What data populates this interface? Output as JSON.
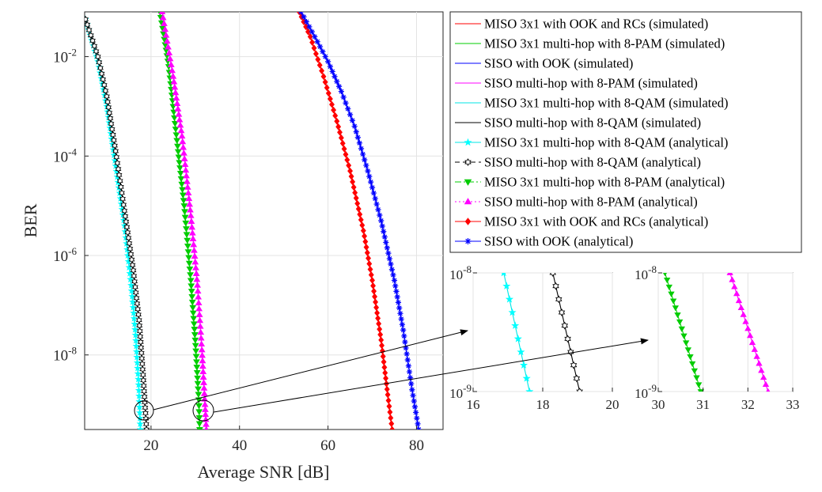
{
  "chart_data": [
    {
      "type": "line",
      "id": "main",
      "xlabel": "Average SNR [dB]",
      "ylabel": "BER",
      "xlim": [
        5,
        86
      ],
      "ylim_log10": [
        -9.5,
        -1.1
      ],
      "yscale": "log",
      "grid": true,
      "x_tick_labels": [
        "20",
        "40",
        "60",
        "80"
      ],
      "x_tick_values": [
        20,
        40,
        60,
        80
      ],
      "y_tick_values": [
        -2,
        -4,
        -6,
        -8
      ],
      "y_tick_base": "10",
      "y_tick_exponents": [
        "-2",
        "-4",
        "-6",
        "-8"
      ],
      "legend_position": "outside-right",
      "series": [
        {
          "name": "MISO 3x1 with OOK and RCs (simulated)",
          "color": "#ff0000",
          "style": "solid",
          "marker": "none",
          "x": [
            53.5,
            56,
            59,
            62,
            65,
            68,
            70,
            72,
            73.5,
            74.5
          ],
          "y_log10": [
            -1.1,
            -1.6,
            -2.4,
            -3.3,
            -4.3,
            -5.5,
            -6.5,
            -7.7,
            -8.8,
            -9.5
          ]
        },
        {
          "name": "MISO 3x1 multi-hop with 8-PAM (simulated)",
          "color": "#00cc00",
          "style": "solid",
          "marker": "none",
          "x": [
            22,
            24,
            26,
            27.5,
            29,
            30,
            30.8,
            31
          ],
          "y_log10": [
            -1.1,
            -2.2,
            -3.8,
            -5.0,
            -6.5,
            -7.7,
            -8.9,
            -9.5
          ]
        },
        {
          "name": "SISO with OOK (simulated)",
          "color": "#0000ff",
          "style": "solid",
          "marker": "none",
          "x": [
            53.9,
            57,
            60,
            63,
            66,
            69,
            72,
            75,
            77,
            79,
            80.5
          ],
          "y_log10": [
            -1.1,
            -1.6,
            -2.1,
            -2.7,
            -3.4,
            -4.3,
            -5.3,
            -6.5,
            -7.5,
            -8.7,
            -9.5
          ]
        },
        {
          "name": "SISO multi-hop with 8-PAM (simulated)",
          "color": "#ff00ff",
          "style": "solid",
          "marker": "none",
          "x": [
            22.5,
            25,
            27,
            29,
            30.5,
            31.5,
            32.2,
            32.5
          ],
          "y_log10": [
            -1.1,
            -2.4,
            -3.6,
            -5.2,
            -6.6,
            -7.9,
            -9.0,
            -9.5
          ]
        },
        {
          "name": "MISO 3x1 multi-hop with 8-QAM (simulated)",
          "color": "#00ffff",
          "style": "solid",
          "marker": "none",
          "x": [
            5.2,
            8,
            10,
            12,
            14,
            15.5,
            16.5,
            17.2,
            17.6
          ],
          "y_log10": [
            -1.25,
            -2.1,
            -3.0,
            -4.2,
            -5.4,
            -6.6,
            -7.6,
            -8.6,
            -9.5
          ]
        },
        {
          "name": "SISO multi-hop with 8-QAM (simulated)",
          "color": "#000000",
          "style": "solid",
          "marker": "none",
          "x": [
            5.2,
            8,
            10,
            12,
            14,
            16,
            17.3,
            18.2,
            19
          ],
          "y_log10": [
            -1.25,
            -2.0,
            -2.8,
            -3.9,
            -5.1,
            -6.3,
            -7.3,
            -8.4,
            -9.5
          ]
        },
        {
          "name": "MISO 3x1 multi-hop with 8-QAM (analytical)",
          "color": "#00ffff",
          "style": "solid",
          "marker": "star",
          "x": [
            5.2,
            8,
            10,
            12,
            14,
            15.5,
            16.5,
            17.2,
            17.6
          ],
          "y_log10": [
            -1.25,
            -2.1,
            -3.0,
            -4.2,
            -5.4,
            -6.6,
            -7.6,
            -8.6,
            -9.5
          ]
        },
        {
          "name": "SISO multi-hop with 8-QAM (analytical)",
          "color": "#000000",
          "style": "dashed",
          "marker": "hexagram",
          "x": [
            5.2,
            8,
            10,
            12,
            14,
            16,
            17.3,
            18.2,
            19
          ],
          "y_log10": [
            -1.25,
            -2.0,
            -2.8,
            -3.9,
            -5.1,
            -6.3,
            -7.3,
            -8.4,
            -9.5
          ]
        },
        {
          "name": "MISO 3x1 multi-hop with 8-PAM (analytical)",
          "color": "#00cc00",
          "style": "dashdot",
          "marker": "triangle-down",
          "x": [
            22,
            24,
            26,
            27.5,
            29,
            30,
            30.8,
            31
          ],
          "y_log10": [
            -1.1,
            -2.2,
            -3.8,
            -5.0,
            -6.5,
            -7.7,
            -8.9,
            -9.5
          ]
        },
        {
          "name": "SISO multi-hop with 8-PAM (analytical)",
          "color": "#ff00ff",
          "style": "dotted",
          "marker": "triangle-up",
          "x": [
            22.5,
            25,
            27,
            29,
            30.5,
            31.5,
            32.2,
            32.5
          ],
          "y_log10": [
            -1.1,
            -2.4,
            -3.6,
            -5.2,
            -6.6,
            -7.9,
            -9.0,
            -9.5
          ]
        },
        {
          "name": "MISO 3x1 with OOK and RCs (analytical)",
          "color": "#ff0000",
          "style": "solid",
          "marker": "diamond",
          "x": [
            53.5,
            56,
            59,
            62,
            65,
            68,
            70,
            72,
            73.5,
            74.5
          ],
          "y_log10": [
            -1.1,
            -1.6,
            -2.4,
            -3.3,
            -4.3,
            -5.5,
            -6.5,
            -7.7,
            -8.8,
            -9.5
          ]
        },
        {
          "name": "SISO with OOK (analytical)",
          "color": "#0000ff",
          "style": "solid",
          "marker": "asterisk",
          "x": [
            53.9,
            57,
            60,
            63,
            66,
            69,
            72,
            75,
            77,
            79,
            80.5
          ],
          "y_log10": [
            -1.1,
            -1.6,
            -2.1,
            -2.7,
            -3.4,
            -4.3,
            -5.3,
            -6.5,
            -7.5,
            -8.7,
            -9.5
          ]
        }
      ]
    },
    {
      "type": "line",
      "id": "inset-qam",
      "xlim": [
        16,
        20
      ],
      "yscale": "log",
      "ylim_log10": [
        -9,
        -8
      ],
      "grid": true,
      "x_tick_labels": [
        "16",
        "18",
        "20"
      ],
      "x_tick_values": [
        16,
        18,
        20
      ],
      "y_tick_base": "10",
      "y_tick_exponents": [
        "-8",
        "-9"
      ],
      "y_tick_values": [
        -8,
        -9
      ],
      "series": [
        {
          "name": "MISO 3x1 multi-hop with 8-QAM (analytical)",
          "color": "#00ffff",
          "marker": "star",
          "x": [
            16.88,
            17.62
          ],
          "y_log10": [
            -8.0,
            -9.0
          ]
        },
        {
          "name": "SISO multi-hop with 8-QAM (analytical)",
          "color": "#000000",
          "marker": "hexagram",
          "x": [
            18.29,
            19.06
          ],
          "y_log10": [
            -8.0,
            -9.0
          ]
        }
      ]
    },
    {
      "type": "line",
      "id": "inset-pam",
      "xlim": [
        30,
        33
      ],
      "yscale": "log",
      "ylim_log10": [
        -9,
        -8
      ],
      "grid": true,
      "x_tick_labels": [
        "30",
        "31",
        "32",
        "33"
      ],
      "x_tick_values": [
        30,
        31,
        32,
        33
      ],
      "y_tick_base": "10",
      "y_tick_exponents": [
        "-8",
        "-9"
      ],
      "y_tick_values": [
        -8,
        -9
      ],
      "series": [
        {
          "name": "MISO 3x1 multi-hop with 8-PAM (analytical)",
          "color": "#00cc00",
          "marker": "triangle-down",
          "x": [
            30.15,
            30.95
          ],
          "y_log10": [
            -8.0,
            -9.0
          ]
        },
        {
          "name": "SISO multi-hop with 8-PAM (analytical)",
          "color": "#ff00ff",
          "marker": "triangle-up",
          "x": [
            31.6,
            32.45
          ],
          "y_log10": [
            -8.0,
            -9.0
          ]
        }
      ]
    }
  ]
}
